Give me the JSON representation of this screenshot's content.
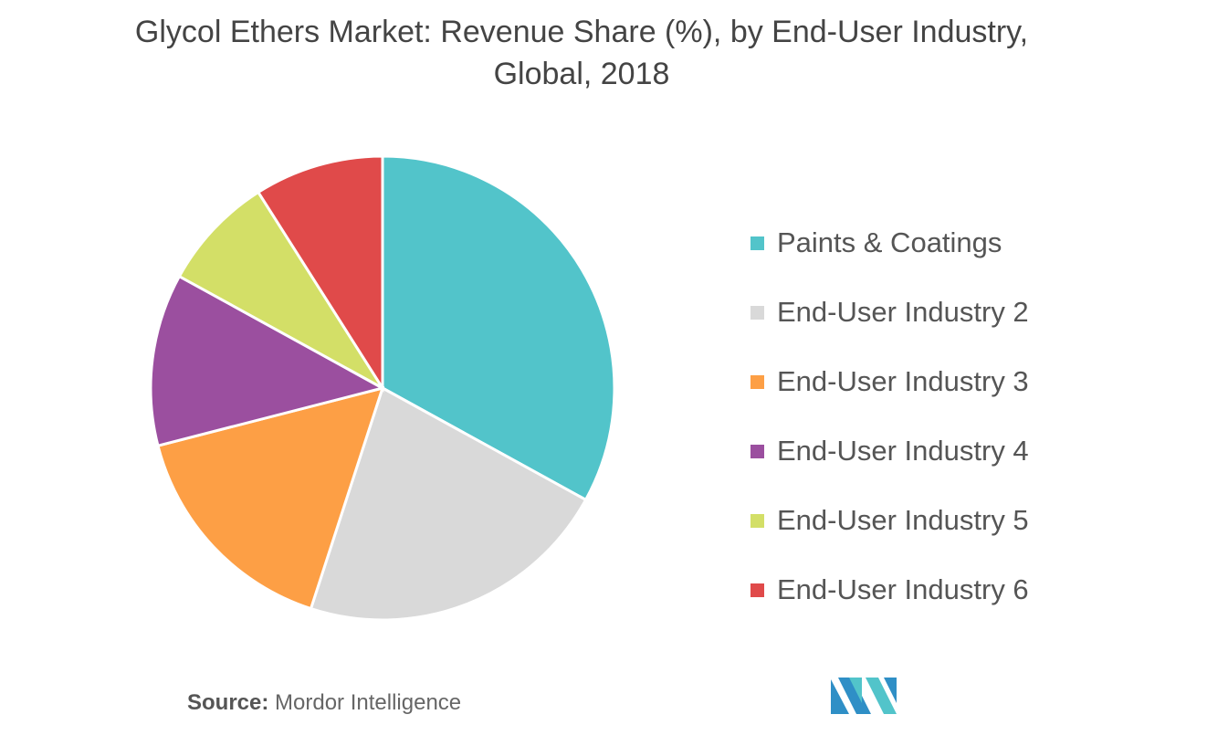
{
  "chart_data": {
    "type": "pie",
    "title": "Glycol Ethers Market: Revenue Share (%), by End-User Industry, Global, 2018",
    "categories": [
      "Paints & Coatings",
      "End-User Industry 2",
      "End-User Industry 3",
      "End-User Industry 4",
      "End-User Industry 5",
      "End-User Industry 6"
    ],
    "values": [
      33,
      22,
      16,
      12,
      8,
      9
    ],
    "colors": [
      "#52c4ca",
      "#d9d9d9",
      "#fd9f45",
      "#9b4f9f",
      "#d3df67",
      "#e04a4a"
    ],
    "legend_position": "right",
    "start": "top",
    "direction": "clockwise"
  },
  "source_label": "Source:",
  "source_value": "Mordor Intelligence",
  "logo_text": "Mordor Intelligence logo"
}
